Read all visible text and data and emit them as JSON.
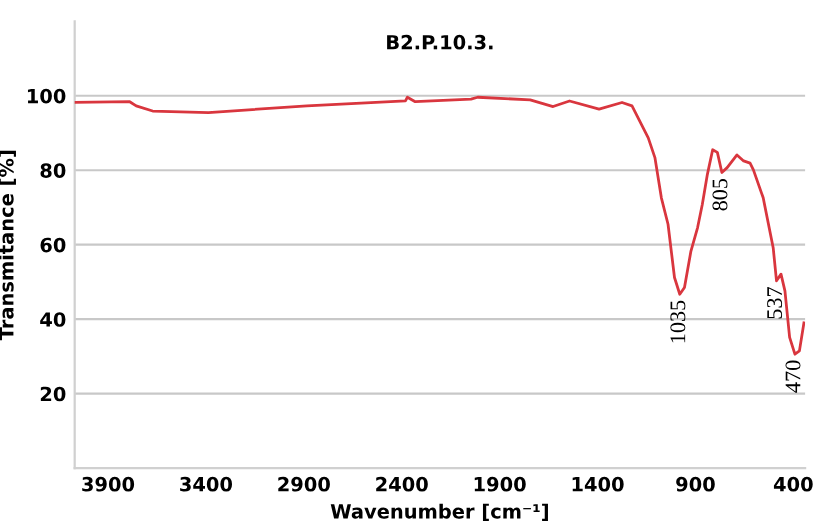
{
  "chart_data": {
    "type": "line",
    "title": "B2.P.10.3.",
    "xlabel": "Wavenumber [cm⁻¹]",
    "ylabel": "Transmitance [%]",
    "xlim": [
      4070,
      340
    ],
    "xticks": [
      3900,
      3400,
      2900,
      2400,
      1900,
      1400,
      900,
      400
    ],
    "ylim": [
      0,
      120
    ],
    "yticks": [
      20,
      40,
      60,
      80,
      100
    ],
    "grid": "y",
    "legend": false,
    "marker": "none",
    "line_style": "solid",
    "series": [
      {
        "color": "#d9363e",
        "x": [
          4068,
          3789,
          3756,
          3672,
          3387,
          2884,
          2381,
          2371,
          2331,
          2046,
          2012,
          1744,
          1627,
          1543,
          1392,
          1275,
          1224,
          1141,
          1107,
          1074,
          1040,
          1007,
          980,
          956,
          923,
          889,
          865,
          839,
          812,
          788,
          765,
          738,
          688,
          654,
          621,
          604,
          554,
          503,
          486,
          463,
          443,
          419,
          392,
          369,
          346
        ],
        "values": [
          98.2,
          98.4,
          97.3,
          95.9,
          95.5,
          97.3,
          98.6,
          99.6,
          98.4,
          99.1,
          99.6,
          98.9,
          97.1,
          98.6,
          96.4,
          98.2,
          97.3,
          88.7,
          83.4,
          72.6,
          65.5,
          51.2,
          46.7,
          48.5,
          58.3,
          64.6,
          70.8,
          78.9,
          85.5,
          84.8,
          79.4,
          80.7,
          84.1,
          82.5,
          81.9,
          80.1,
          72.6,
          59.2,
          50.3,
          52.1,
          47.6,
          35.1,
          30.6,
          31.5,
          39.0
        ]
      }
    ],
    "annotations": [
      {
        "text": "1035",
        "x": 980,
        "y": 46.7
      },
      {
        "text": "805",
        "x": 765,
        "y": 79.4
      },
      {
        "text": "537",
        "x": 486,
        "y": 50.3
      },
      {
        "text": "470",
        "x": 392,
        "y": 30.6
      }
    ]
  }
}
